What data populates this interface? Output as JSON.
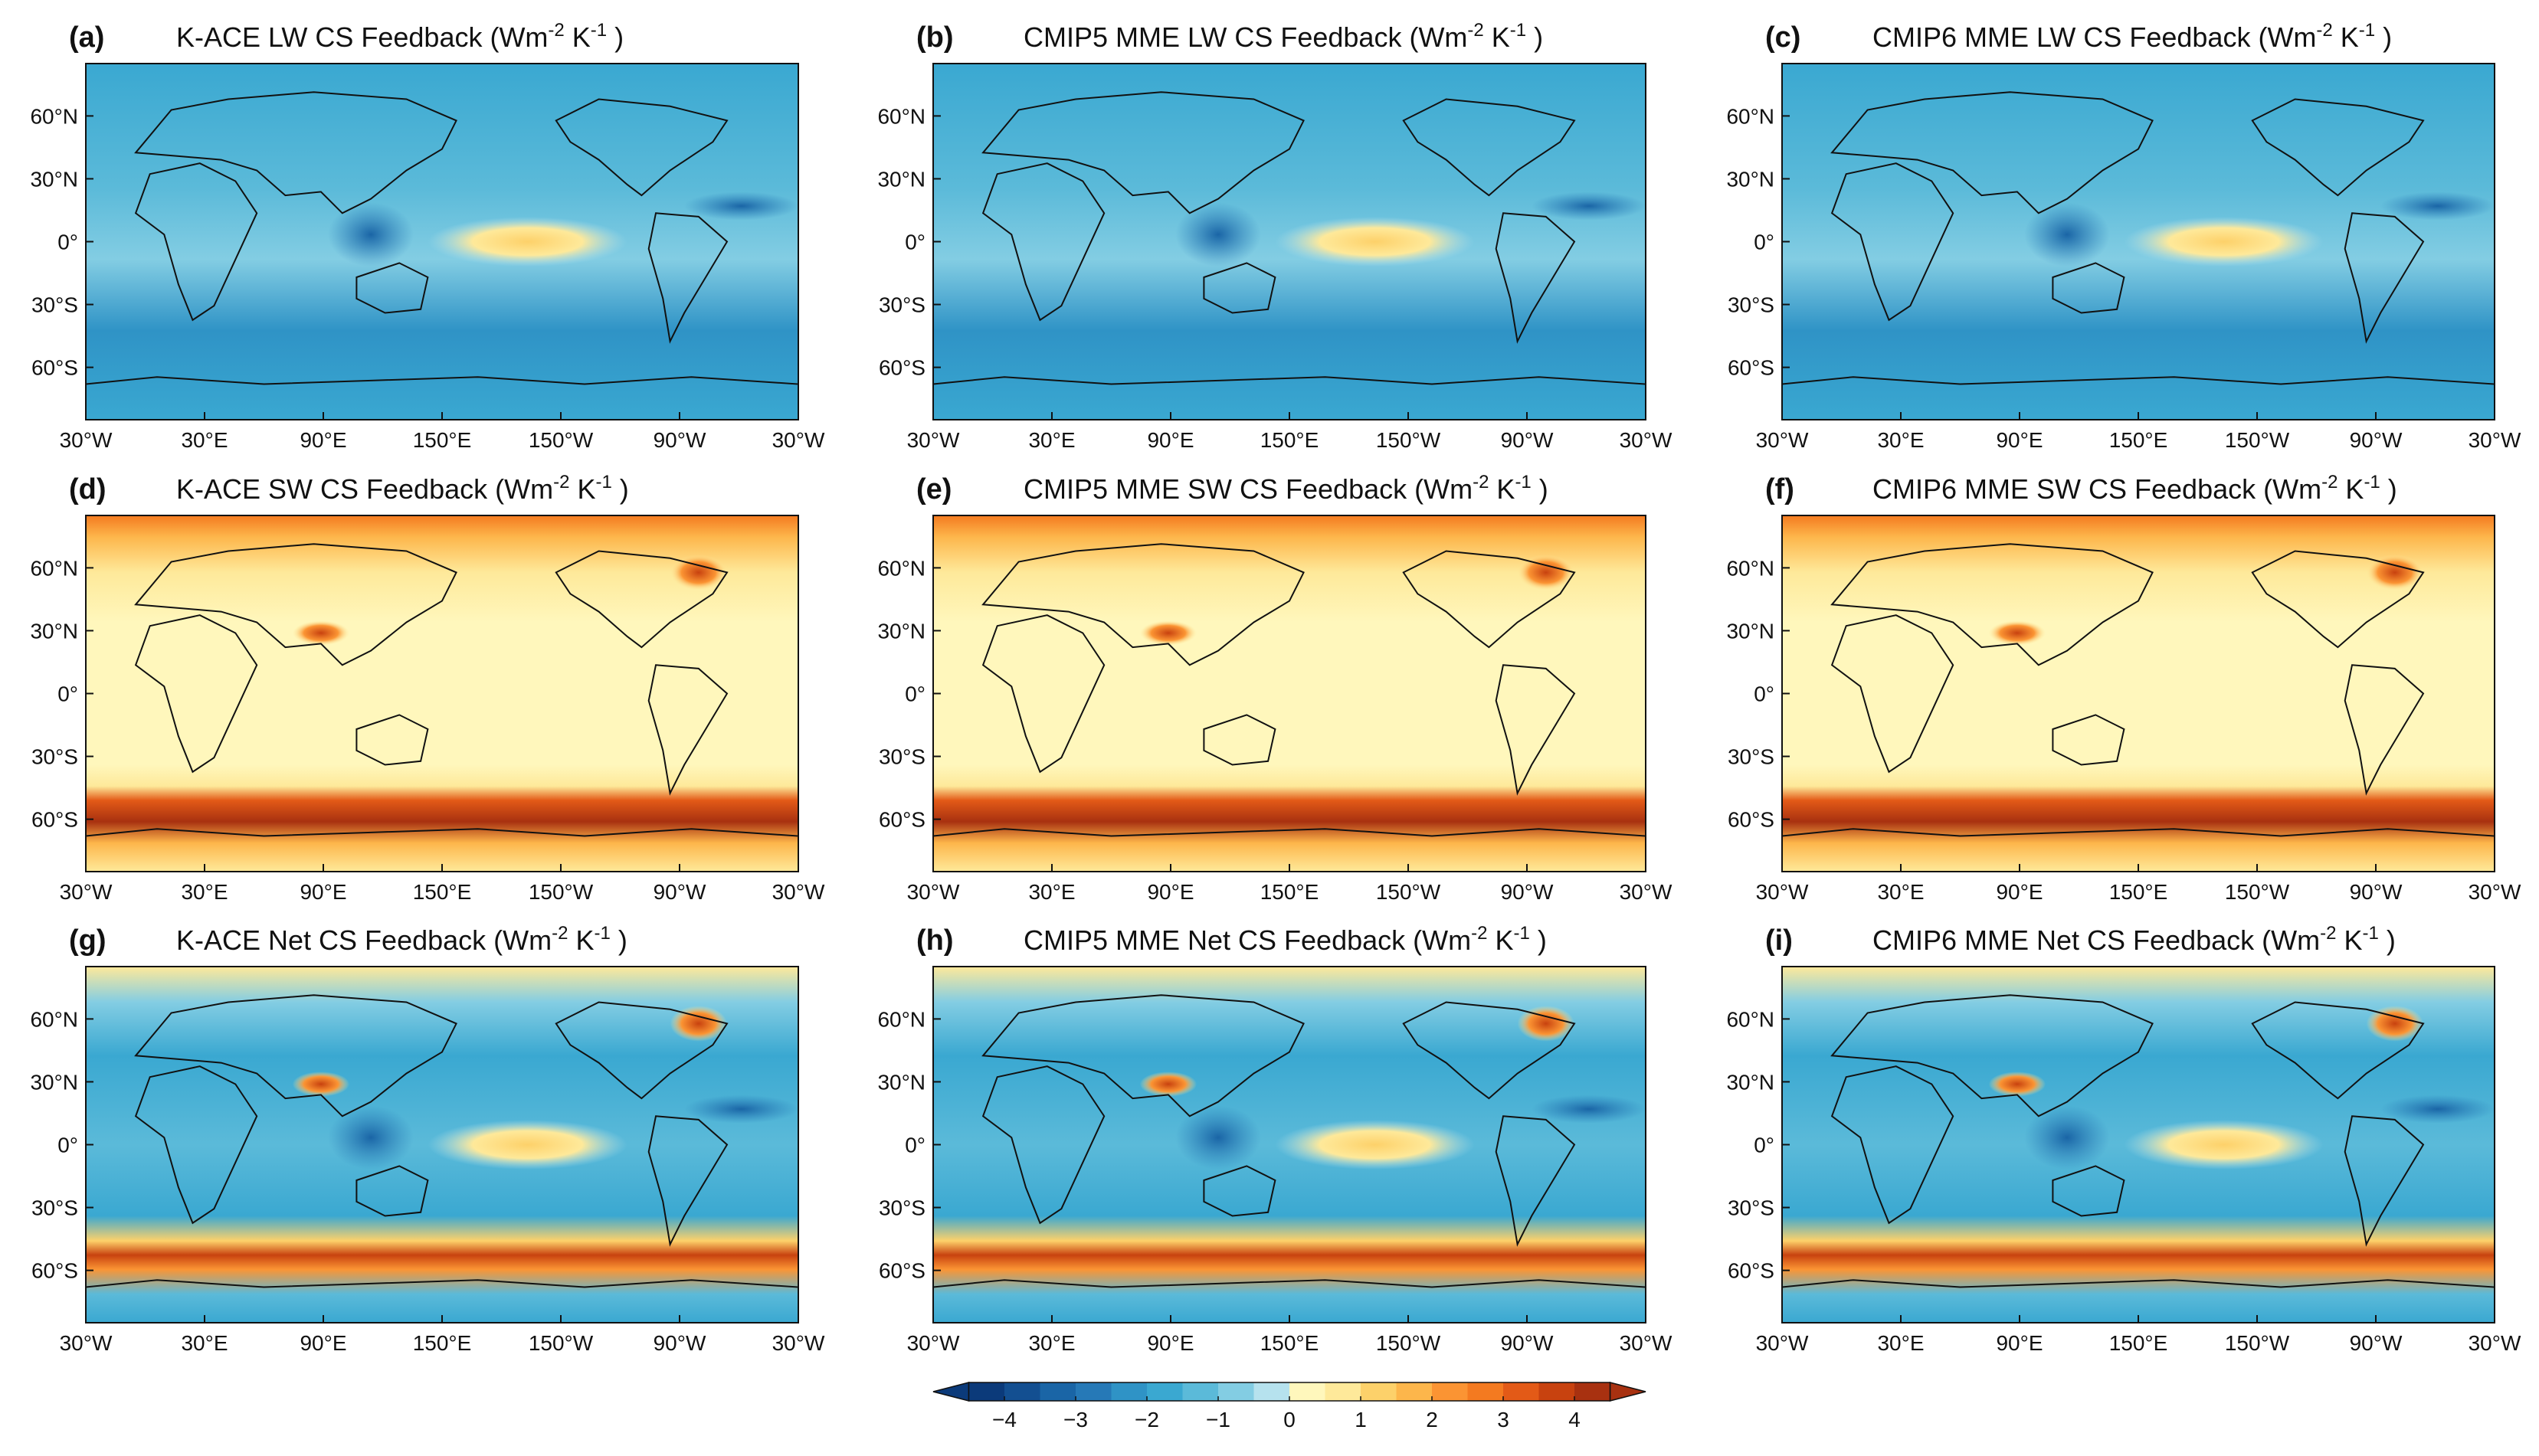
{
  "figure": {
    "units_label": "(Wm",
    "units_exp1": "-2",
    "units_mid": "K",
    "units_exp2": "-1",
    "units_close": ")"
  },
  "chart_data": {
    "type": "heatmap",
    "description_type": "map-grid",
    "x_ticks": [
      "30°W",
      "30°E",
      "90°E",
      "150°E",
      "150°W",
      "90°W",
      "30°W"
    ],
    "y_ticks": [
      "60°N",
      "30°N",
      "0°",
      "30°S",
      "60°S"
    ],
    "colorbar": {
      "ticks": [
        "−4",
        "−3",
        "−2",
        "−1",
        "0",
        "1",
        "2",
        "3",
        "4"
      ],
      "tick_values": [
        -4,
        -3,
        -2,
        -1,
        0,
        1,
        2,
        3,
        4
      ],
      "range": [
        -4.5,
        4.5
      ],
      "levels": [
        -4.5,
        -4,
        -3.5,
        -3,
        -2.5,
        -2,
        -1.5,
        -1,
        -0.5,
        0,
        0.5,
        1,
        1.5,
        2,
        2.5,
        3,
        3.5,
        4,
        4.5
      ],
      "colors": [
        "#0b3a7a",
        "#134f91",
        "#1a65a6",
        "#2679b7",
        "#2f93c6",
        "#3aa8d1",
        "#5bbad9",
        "#83cde3",
        "#b6e2ee",
        "#fff7bc",
        "#fee99a",
        "#fdd16a",
        "#fdb64b",
        "#fb9433",
        "#f47a20",
        "#e35a17",
        "#c8420f",
        "#a83110"
      ]
    },
    "panels": [
      {
        "label": "(a)",
        "title": "K-ACE  LW CS Feedback",
        "variable": "LW",
        "source": "K-ACE"
      },
      {
        "label": "(b)",
        "title": "CMIP5 MME  LW CS Feedback",
        "variable": "LW",
        "source": "CMIP5 MME"
      },
      {
        "label": "(c)",
        "title": "CMIP6 MME  LW CS Feedback",
        "variable": "LW",
        "source": "CMIP6 MME"
      },
      {
        "label": "(d)",
        "title": "K-ACE  SW CS Feedback",
        "variable": "SW",
        "source": "K-ACE"
      },
      {
        "label": "(e)",
        "title": "CMIP5 MME  SW CS Feedback",
        "variable": "SW",
        "source": "CMIP5 MME"
      },
      {
        "label": "(f)",
        "title": "CMIP6 MME  SW CS Feedback",
        "variable": "SW",
        "source": "CMIP6 MME"
      },
      {
        "label": "(g)",
        "title": "K-ACE  Net CS Feedback",
        "variable": "Net",
        "source": "K-ACE"
      },
      {
        "label": "(h)",
        "title": "CMIP5 MME  Net CS Feedback",
        "variable": "Net",
        "source": "CMIP5 MME"
      },
      {
        "label": "(i)",
        "title": "CMIP6 MME  Net CS Feedback",
        "variable": "Net",
        "source": "CMIP6 MME"
      }
    ]
  }
}
